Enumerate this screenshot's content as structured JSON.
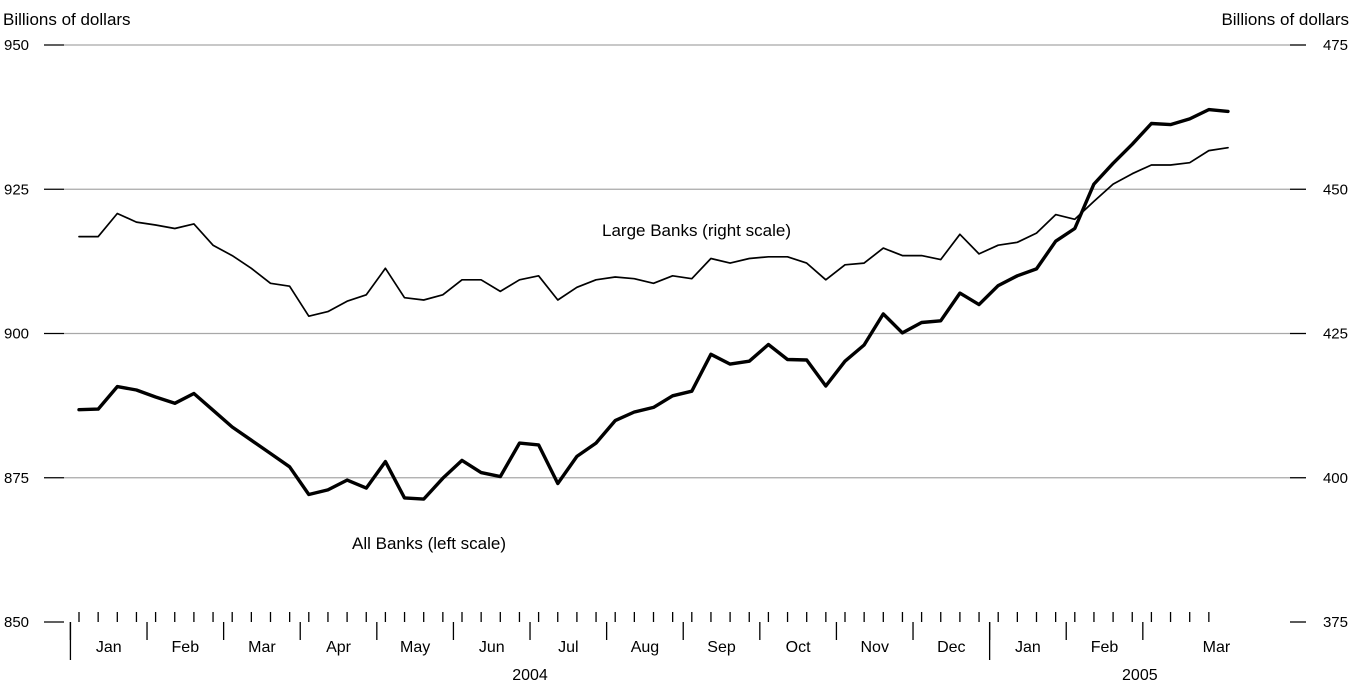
{
  "chart_data": {
    "type": "line",
    "left_axis_title": "Billions of dollars",
    "right_axis_title": "Billions of dollars",
    "left_axis": {
      "ylim": [
        850,
        950
      ],
      "ticks": [
        "850",
        "875",
        "900",
        "925",
        "950"
      ]
    },
    "right_axis": {
      "ylim": [
        375,
        475
      ],
      "ticks": [
        "375",
        "400",
        "425",
        "450",
        "475"
      ]
    },
    "months": [
      "Jan",
      "Feb",
      "Mar",
      "Apr",
      "May",
      "Jun",
      "Jul",
      "Aug",
      "Sep",
      "Oct",
      "Nov",
      "Dec",
      "Jan",
      "Feb",
      "Mar"
    ],
    "years": [
      {
        "label": "2004",
        "start_month": 0,
        "end_month": 12
      },
      {
        "label": "2005",
        "start_month": 12,
        "end_month": 15
      }
    ],
    "weeks_per_month": [
      4,
      4,
      4,
      4,
      4,
      4,
      4,
      4,
      4,
      4,
      4,
      4,
      4,
      4,
      4
    ],
    "grid": true,
    "series": [
      {
        "name": "All Banks (left scale)",
        "axis": "left",
        "values": [
          886.8,
          886.9,
          890.8,
          890.2,
          889.0,
          887.9,
          889.6,
          886.7,
          883.8,
          881.5,
          879.2,
          876.9,
          872.1,
          872.9,
          874.6,
          873.2,
          877.8,
          871.5,
          871.3,
          874.9,
          878.0,
          875.9,
          875.2,
          881.0,
          880.7,
          874.0,
          878.7,
          881.0,
          884.9,
          886.4,
          887.2,
          889.2,
          890.0,
          896.4,
          894.7,
          895.2,
          898.1,
          895.5,
          895.4,
          890.9,
          895.2,
          898.0,
          903.4,
          900.1,
          901.9,
          902.2,
          907.0,
          905.0,
          908.3,
          910.0,
          911.2,
          916.0,
          918.2,
          925.9,
          929.5,
          932.8,
          936.4,
          936.2,
          937.2,
          938.8,
          938.5
        ],
        "label_position": "lower-left"
      },
      {
        "name": "Large Banks (right scale)",
        "axis": "right",
        "values": [
          441.8,
          441.8,
          445.8,
          444.3,
          443.8,
          443.2,
          444.0,
          440.3,
          438.5,
          436.3,
          433.7,
          433.2,
          428.0,
          428.8,
          430.6,
          431.7,
          436.3,
          431.2,
          430.8,
          431.7,
          434.3,
          434.3,
          432.3,
          434.3,
          435.0,
          430.8,
          433.0,
          434.3,
          434.8,
          434.5,
          433.7,
          435.0,
          434.5,
          438.0,
          437.2,
          438.0,
          438.3,
          438.3,
          437.2,
          434.3,
          436.9,
          437.2,
          439.8,
          438.5,
          438.5,
          437.8,
          442.2,
          438.8,
          440.3,
          440.8,
          442.4,
          445.6,
          444.8,
          447.9,
          450.9,
          452.7,
          454.2,
          454.2,
          454.6,
          456.7,
          457.2
        ],
        "label_position": "center"
      }
    ]
  }
}
